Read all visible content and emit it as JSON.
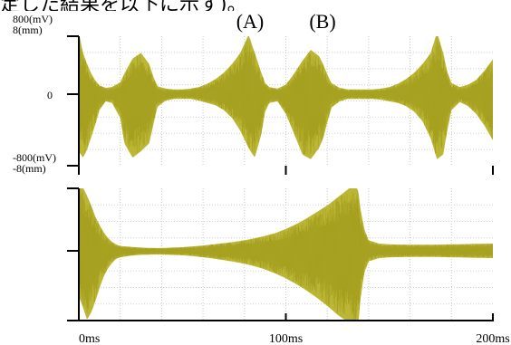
{
  "caption_partial": "定した結果を以下に示す)。",
  "chart_data": [
    {
      "type": "line",
      "annotations": [
        "(A)",
        "(B)"
      ],
      "xlim": [
        0,
        200
      ],
      "ylim": [
        -800,
        800
      ],
      "y_ticks": [
        {
          "value": 800,
          "label_lines": [
            "800(mV)",
            "8(mm)"
          ]
        },
        {
          "value": 0,
          "label_lines": [
            "0"
          ]
        },
        {
          "value": -800,
          "label_lines": [
            "-800(mV)",
            "-8(mm)"
          ]
        }
      ],
      "series": [
        {
          "color": "#b8b22a",
          "envelope_x": [
            0,
            2,
            4,
            6,
            8,
            10,
            13,
            16,
            20,
            22,
            26,
            30,
            34,
            36,
            38,
            42,
            46,
            50,
            54,
            58,
            62,
            66,
            70,
            74,
            78,
            82,
            85,
            88,
            90,
            92,
            96,
            100,
            104,
            108,
            112,
            116,
            118,
            120,
            122,
            126,
            130,
            134,
            138,
            142,
            146,
            150,
            154,
            158,
            162,
            166,
            170,
            173,
            176,
            178,
            180,
            184,
            188,
            192,
            196,
            200
          ],
          "envelope_upper": [
            780,
            520,
            380,
            260,
            170,
            110,
            80,
            90,
            150,
            260,
            450,
            520,
            380,
            220,
            100,
            70,
            60,
            60,
            70,
            90,
            130,
            190,
            270,
            380,
            520,
            750,
            520,
            280,
            140,
            90,
            70,
            120,
            260,
            420,
            560,
            480,
            380,
            250,
            140,
            80,
            60,
            60,
            60,
            60,
            70,
            90,
            130,
            190,
            270,
            380,
            520,
            780,
            520,
            280,
            140,
            90,
            120,
            180,
            300,
            440
          ],
          "envelope_lower": [
            -720,
            -800,
            -700,
            -540,
            -380,
            -200,
            -90,
            -110,
            -300,
            -620,
            -800,
            -720,
            -620,
            -380,
            -160,
            -80,
            -60,
            -60,
            -60,
            -80,
            -110,
            -140,
            -200,
            -300,
            -460,
            -680,
            -800,
            -520,
            -220,
            -110,
            -90,
            -250,
            -500,
            -760,
            -820,
            -680,
            -560,
            -360,
            -170,
            -90,
            -60,
            -60,
            -60,
            -60,
            -70,
            -90,
            -110,
            -150,
            -220,
            -340,
            -560,
            -820,
            -760,
            -460,
            -200,
            -100,
            -150,
            -250,
            -400,
            -580
          ]
        },
        {
          "color": "#b8b22a",
          "envelope_x": [
            0,
            2,
            4,
            6,
            8,
            10,
            12,
            14,
            16,
            18,
            20,
            25,
            30,
            35,
            40,
            45,
            50,
            55,
            60,
            65,
            70,
            75,
            80,
            85,
            90,
            95,
            100,
            105,
            110,
            115,
            120,
            125,
            130,
            132,
            134,
            135,
            136,
            138,
            140,
            145,
            150,
            160,
            170,
            180,
            190,
            200
          ],
          "envelope_upper": [
            820,
            780,
            680,
            560,
            420,
            320,
            230,
            160,
            110,
            80,
            60,
            50,
            40,
            35,
            35,
            40,
            45,
            55,
            65,
            80,
            95,
            110,
            130,
            155,
            185,
            220,
            270,
            330,
            400,
            480,
            560,
            660,
            760,
            800,
            780,
            740,
            520,
            260,
            130,
            90,
            80,
            75,
            75,
            80,
            85,
            90
          ],
          "envelope_lower": [
            -560,
            -700,
            -850,
            -760,
            -620,
            -460,
            -320,
            -220,
            -150,
            -100,
            -80,
            -60,
            -50,
            -45,
            -45,
            -50,
            -55,
            -65,
            -80,
            -95,
            -115,
            -135,
            -160,
            -190,
            -230,
            -280,
            -340,
            -410,
            -490,
            -580,
            -680,
            -790,
            -880,
            -940,
            -960,
            -900,
            -600,
            -260,
            -130,
            -90,
            -80,
            -75,
            -75,
            -80,
            -85,
            -90
          ]
        }
      ],
      "x_ticks": [
        {
          "value": 0,
          "label": "0ms"
        },
        {
          "value": 100,
          "label": "100ms"
        },
        {
          "value": 200,
          "label": "200ms"
        }
      ]
    }
  ]
}
